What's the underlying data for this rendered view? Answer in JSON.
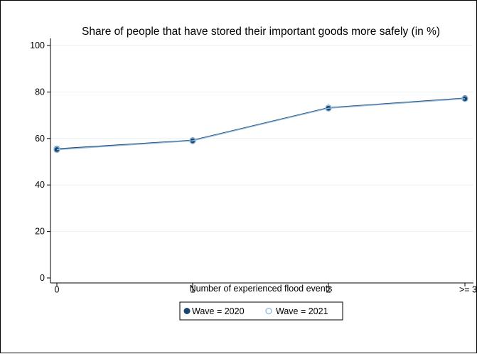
{
  "chart_data": {
    "type": "line",
    "title": "Share of people that have stored their important goods more safely (in %)",
    "xlabel": "Number of experienced flood events",
    "ylabel": "",
    "categories": [
      "0",
      "1",
      "2",
      ">= 3"
    ],
    "ylim": [
      0,
      100
    ],
    "yticks": [
      "0",
      "20",
      "40",
      "60",
      "80",
      "100"
    ],
    "grid": true,
    "legend_position": "bottom",
    "series": [
      {
        "name": "Wave = 2020",
        "values": [
          55.5,
          59.2,
          73.2,
          77.3
        ],
        "color": "#1a476f",
        "marker": "filled-circle"
      },
      {
        "name": "Wave = 2021",
        "values": [
          55.2,
          59.0,
          73.0,
          77.1
        ],
        "color": "#90b8dc",
        "marker": "hollow-circle"
      }
    ]
  }
}
